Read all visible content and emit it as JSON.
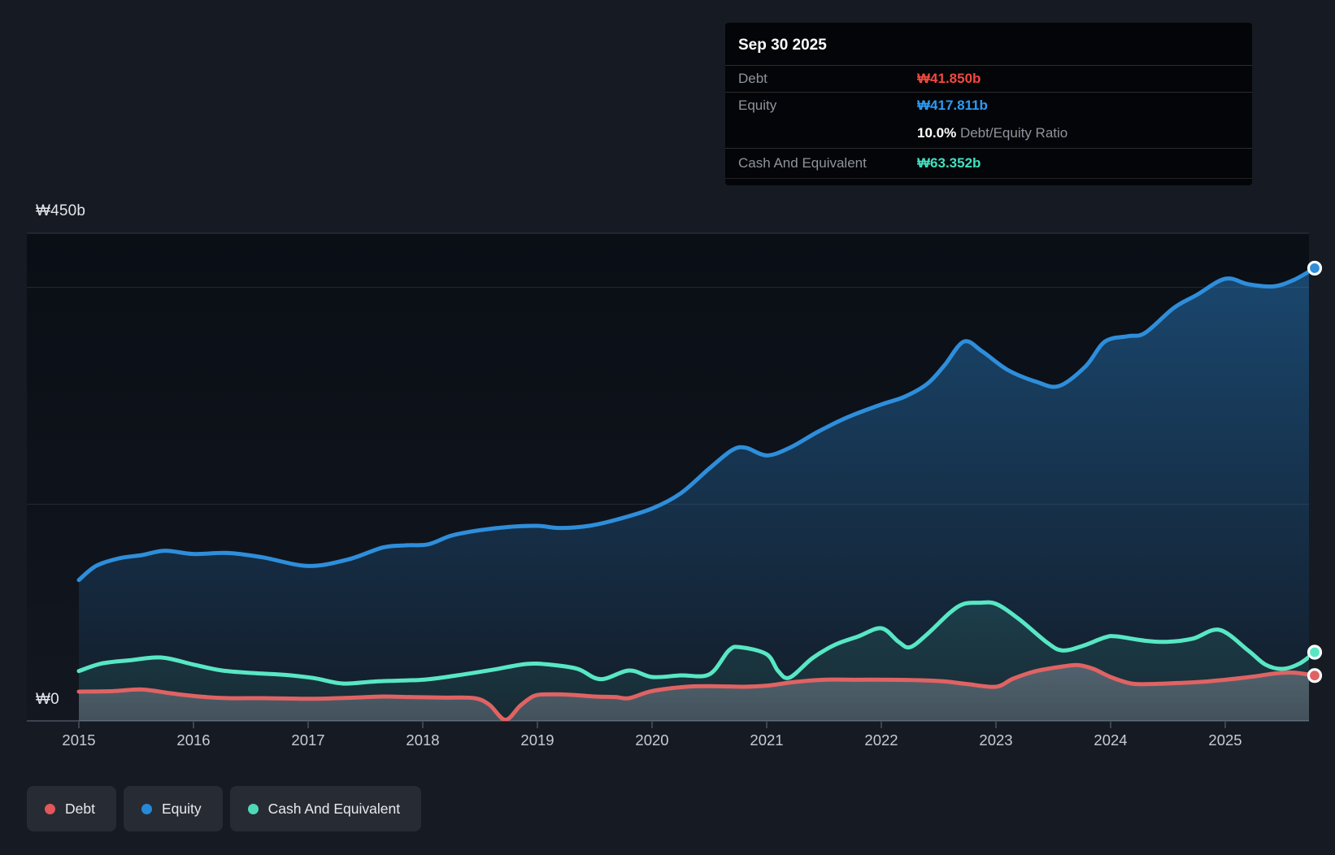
{
  "tooltip": {
    "title": "Sep 30 2025",
    "debt_label": "Debt",
    "debt_value": "₩41.850b",
    "debt_color": "#f2483f",
    "equity_label": "Equity",
    "equity_value": "₩417.811b",
    "equity_color": "#2b9bf5",
    "ratio_value": "10.0%",
    "ratio_label": "Debt/Equity Ratio",
    "cash_label": "Cash And Equivalent",
    "cash_value": "₩63.352b",
    "cash_color": "#41e0c0"
  },
  "y_axis": {
    "top_label": "₩450b",
    "zero_label": "₩0"
  },
  "x_axis": {
    "years": [
      "2015",
      "2016",
      "2017",
      "2018",
      "2019",
      "2020",
      "2021",
      "2022",
      "2023",
      "2024",
      "2025"
    ]
  },
  "legend": {
    "items": [
      {
        "label": "Debt",
        "color": "#e25757"
      },
      {
        "label": "Equity",
        "color": "#2589d8"
      },
      {
        "label": "Cash And Equivalent",
        "color": "#4fd8b8"
      }
    ]
  },
  "chart_data": {
    "type": "area",
    "unit": "billions KRW (₩b)",
    "ylim": [
      0,
      450
    ],
    "xlim": [
      2014.55,
      2025.93
    ],
    "y_tick_labels": [
      "₩450b",
      "₩0"
    ],
    "gridline_values": [
      450,
      400,
      200,
      0
    ],
    "x_ticks": [
      2015,
      2016,
      2017,
      2018,
      2019,
      2020,
      2021,
      2022,
      2023,
      2024,
      2025
    ],
    "legend_position": "bottom-left",
    "series": [
      {
        "name": "Equity",
        "color": "#2e8edb",
        "points": [
          [
            2015.0,
            130
          ],
          [
            2015.15,
            143
          ],
          [
            2015.35,
            150
          ],
          [
            2015.55,
            153
          ],
          [
            2015.75,
            157
          ],
          [
            2016.0,
            154
          ],
          [
            2016.3,
            155
          ],
          [
            2016.6,
            151
          ],
          [
            2017.0,
            143
          ],
          [
            2017.35,
            149
          ],
          [
            2017.65,
            160
          ],
          [
            2017.85,
            162
          ],
          [
            2018.05,
            163
          ],
          [
            2018.25,
            171
          ],
          [
            2018.5,
            176
          ],
          [
            2018.75,
            179
          ],
          [
            2019.0,
            180
          ],
          [
            2019.2,
            178
          ],
          [
            2019.45,
            180
          ],
          [
            2019.7,
            186
          ],
          [
            2020.0,
            196
          ],
          [
            2020.25,
            210
          ],
          [
            2020.5,
            233
          ],
          [
            2020.7,
            250
          ],
          [
            2020.82,
            252
          ],
          [
            2021.0,
            245
          ],
          [
            2021.2,
            252
          ],
          [
            2021.45,
            267
          ],
          [
            2021.7,
            280
          ],
          [
            2022.0,
            292
          ],
          [
            2022.2,
            299
          ],
          [
            2022.4,
            311
          ],
          [
            2022.55,
            328
          ],
          [
            2022.72,
            350
          ],
          [
            2022.88,
            341
          ],
          [
            2023.1,
            324
          ],
          [
            2023.35,
            313
          ],
          [
            2023.55,
            309
          ],
          [
            2023.78,
            327
          ],
          [
            2023.95,
            350
          ],
          [
            2024.15,
            355
          ],
          [
            2024.3,
            358
          ],
          [
            2024.55,
            381
          ],
          [
            2024.75,
            393
          ],
          [
            2025.0,
            408
          ],
          [
            2025.2,
            403
          ],
          [
            2025.42,
            401
          ],
          [
            2025.6,
            407
          ],
          [
            2025.78,
            417.811
          ]
        ]
      },
      {
        "name": "Cash And Equivalent",
        "color": "#58e7c4",
        "points": [
          [
            2015.0,
            46
          ],
          [
            2015.2,
            53
          ],
          [
            2015.45,
            56
          ],
          [
            2015.72,
            58.5
          ],
          [
            2016.0,
            52
          ],
          [
            2016.25,
            46.5
          ],
          [
            2016.55,
            44
          ],
          [
            2016.8,
            42.5
          ],
          [
            2017.05,
            39.5
          ],
          [
            2017.3,
            34.5
          ],
          [
            2017.6,
            36.5
          ],
          [
            2018.0,
            38
          ],
          [
            2018.3,
            42
          ],
          [
            2018.6,
            47
          ],
          [
            2018.9,
            52.5
          ],
          [
            2019.1,
            52
          ],
          [
            2019.35,
            48
          ],
          [
            2019.55,
            38.5
          ],
          [
            2019.8,
            46.5
          ],
          [
            2020.0,
            40.5
          ],
          [
            2020.25,
            42
          ],
          [
            2020.5,
            43
          ],
          [
            2020.67,
            65
          ],
          [
            2020.77,
            68
          ],
          [
            2021.0,
            61.5
          ],
          [
            2021.1,
            46
          ],
          [
            2021.2,
            40
          ],
          [
            2021.4,
            58
          ],
          [
            2021.6,
            70.5
          ],
          [
            2021.8,
            78
          ],
          [
            2022.0,
            85.5
          ],
          [
            2022.15,
            73
          ],
          [
            2022.25,
            68
          ],
          [
            2022.4,
            80
          ],
          [
            2022.6,
            100
          ],
          [
            2022.72,
            108
          ],
          [
            2022.85,
            109
          ],
          [
            2023.0,
            108
          ],
          [
            2023.2,
            94
          ],
          [
            2023.45,
            72
          ],
          [
            2023.58,
            65
          ],
          [
            2023.75,
            69
          ],
          [
            2023.95,
            77
          ],
          [
            2024.05,
            78
          ],
          [
            2024.3,
            74
          ],
          [
            2024.5,
            73
          ],
          [
            2024.72,
            76
          ],
          [
            2024.95,
            84
          ],
          [
            2025.2,
            65
          ],
          [
            2025.35,
            52
          ],
          [
            2025.5,
            48
          ],
          [
            2025.65,
            53
          ],
          [
            2025.78,
            63.352
          ]
        ]
      },
      {
        "name": "Debt",
        "color": "#e06363",
        "points": [
          [
            2015.0,
            27
          ],
          [
            2015.3,
            27.5
          ],
          [
            2015.55,
            29
          ],
          [
            2015.8,
            25.5
          ],
          [
            2016.05,
            22.5
          ],
          [
            2016.3,
            21
          ],
          [
            2016.6,
            21
          ],
          [
            2016.9,
            20.5
          ],
          [
            2017.1,
            20.5
          ],
          [
            2017.4,
            21.5
          ],
          [
            2017.65,
            22.5
          ],
          [
            2017.9,
            22
          ],
          [
            2018.2,
            21.5
          ],
          [
            2018.45,
            21
          ],
          [
            2018.58,
            15
          ],
          [
            2018.72,
            1
          ],
          [
            2018.85,
            14
          ],
          [
            2018.97,
            23
          ],
          [
            2019.1,
            24.5
          ],
          [
            2019.3,
            24
          ],
          [
            2019.5,
            22.5
          ],
          [
            2019.68,
            22
          ],
          [
            2019.8,
            21
          ],
          [
            2020.0,
            27.5
          ],
          [
            2020.3,
            31.5
          ],
          [
            2020.55,
            32
          ],
          [
            2020.8,
            31.5
          ],
          [
            2021.0,
            32.5
          ],
          [
            2021.25,
            36
          ],
          [
            2021.5,
            38
          ],
          [
            2021.8,
            38
          ],
          [
            2022.1,
            38
          ],
          [
            2022.35,
            37.5
          ],
          [
            2022.55,
            36.5
          ],
          [
            2022.75,
            34
          ],
          [
            2023.0,
            31.5
          ],
          [
            2023.15,
            39
          ],
          [
            2023.35,
            46
          ],
          [
            2023.6,
            50.5
          ],
          [
            2023.72,
            51.5
          ],
          [
            2023.85,
            48
          ],
          [
            2024.0,
            40.5
          ],
          [
            2024.18,
            34.5
          ],
          [
            2024.35,
            34
          ],
          [
            2024.6,
            35
          ],
          [
            2024.85,
            36.5
          ],
          [
            2025.05,
            38.5
          ],
          [
            2025.25,
            41
          ],
          [
            2025.45,
            44
          ],
          [
            2025.6,
            44.5
          ],
          [
            2025.78,
            41.85
          ]
        ]
      }
    ]
  }
}
